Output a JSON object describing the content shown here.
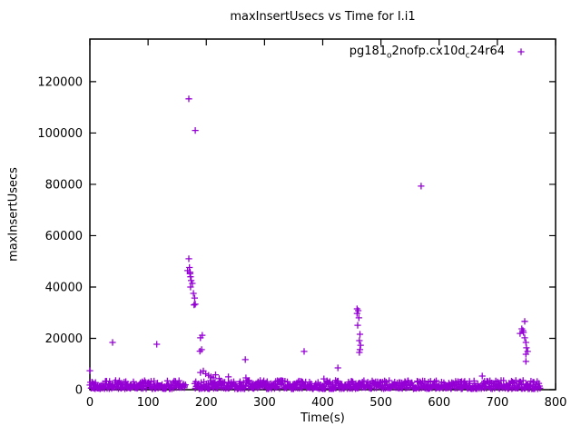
{
  "figure": {
    "title": "maxInsertUsecs vs Time for I.i1",
    "background": "#ffffff"
  },
  "axes": {
    "x": {
      "label": "Time(s)",
      "min": 0,
      "max": 800,
      "ticks": [
        0,
        100,
        200,
        300,
        400,
        500,
        600,
        700,
        800
      ]
    },
    "y": {
      "label": "maxInsertUsecs",
      "min": 0,
      "max": 136600,
      "ticks": [
        0,
        20000,
        40000,
        60000,
        80000,
        100000,
        120000
      ]
    }
  },
  "legend": {
    "series_label_plain": "pg181_o2nofp.cx10d_c24r64",
    "parts": [
      {
        "text": "pg181"
      },
      {
        "sub": "o"
      },
      {
        "text": "2nofp.cx10d"
      },
      {
        "sub": "c"
      },
      {
        "text": "24r64"
      }
    ],
    "marker": "plus",
    "color": "#9400d3"
  },
  "chart_data": {
    "type": "scatter",
    "title": "maxInsertUsecs vs Time for I.i1",
    "xlabel": "Time(s)",
    "ylabel": "maxInsertUsecs",
    "xlim": [
      0,
      800
    ],
    "ylim": [
      0,
      136600
    ],
    "grid": false,
    "legend_position": "top-right-inside",
    "series": [
      {
        "name": "pg181_o2nofp.cx10d_c24r64",
        "color": "#9400d3",
        "marker": "plus",
        "outlier_points": [
          [
            0,
            7400
          ],
          [
            39,
            18400
          ],
          [
            115,
            17700
          ],
          [
            168,
            46400
          ],
          [
            170,
            113300
          ],
          [
            181,
            101000
          ],
          [
            170,
            51000
          ],
          [
            171,
            47600
          ],
          [
            172,
            45800
          ],
          [
            172,
            45200
          ],
          [
            173,
            44000
          ],
          [
            174,
            42500
          ],
          [
            176,
            41400
          ],
          [
            173,
            40000
          ],
          [
            178,
            37500
          ],
          [
            180,
            35700
          ],
          [
            179,
            33000
          ],
          [
            181,
            33300
          ],
          [
            193,
            21200
          ],
          [
            190,
            20200
          ],
          [
            189,
            15000
          ],
          [
            192,
            15600
          ],
          [
            190,
            6700
          ],
          [
            195,
            7300
          ],
          [
            199,
            6200
          ],
          [
            204,
            5600
          ],
          [
            208,
            5000
          ],
          [
            212,
            4600
          ],
          [
            216,
            5800
          ],
          [
            222,
            4300
          ],
          [
            238,
            5000
          ],
          [
            267,
            11700
          ],
          [
            268,
            4600
          ],
          [
            368,
            14900
          ],
          [
            402,
            4200
          ],
          [
            426,
            8500
          ],
          [
            459,
            31500
          ],
          [
            461,
            30800
          ],
          [
            459,
            29700
          ],
          [
            462,
            28000
          ],
          [
            460,
            25100
          ],
          [
            464,
            21600
          ],
          [
            463,
            19100
          ],
          [
            465,
            17300
          ],
          [
            464,
            15600
          ],
          [
            463,
            14500
          ],
          [
            569,
            79300
          ],
          [
            674,
            5300
          ],
          [
            747,
            26600
          ],
          [
            742,
            23700
          ],
          [
            744,
            23000
          ],
          [
            745,
            22300
          ],
          [
            739,
            21900
          ],
          [
            747,
            20200
          ],
          [
            749,
            18400
          ],
          [
            750,
            16300
          ],
          [
            752,
            14900
          ],
          [
            749,
            13800
          ],
          [
            749,
            11000
          ]
        ],
        "baseline_band": {
          "note": "dense band of per-second samples along the bottom of the plot",
          "t_start": 0,
          "t_end": 773,
          "t_gap": [
            164,
            180
          ],
          "v_min": 350,
          "v_max": 3600,
          "sample_interval_s": 1
        }
      }
    ]
  }
}
